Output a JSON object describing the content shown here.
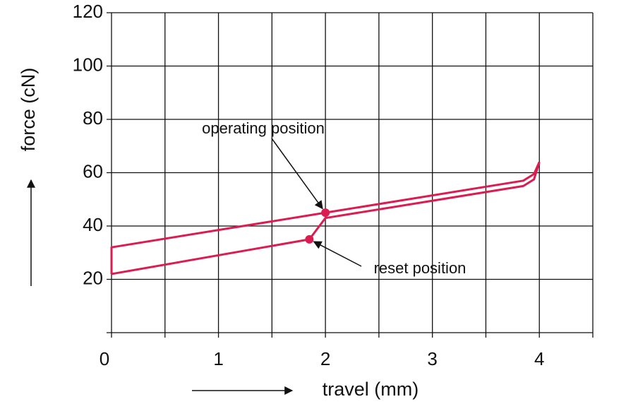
{
  "chart_data": {
    "type": "line",
    "xlabel": "travel (mm)",
    "ylabel": "force (cN)",
    "xlim": [
      0,
      4.5
    ],
    "xticks": [
      0,
      1,
      2,
      3,
      4
    ],
    "x_minor_grid": [
      0.5,
      1.5,
      2.5,
      3.5,
      4.5
    ],
    "ylim": [
      0,
      120
    ],
    "yticks": [
      20,
      40,
      60,
      80,
      100,
      120
    ],
    "grid": true,
    "color": "#dc1c50",
    "series": [
      {
        "x": [
          0,
          0,
          2,
          3.85,
          3.95,
          4.0
        ],
        "values": [
          22,
          32,
          45,
          57,
          59.5,
          64
        ]
      },
      {
        "x": [
          0,
          1.85,
          2.0,
          3.85,
          3.95,
          4.0
        ],
        "values": [
          22,
          35,
          43,
          55,
          57.5,
          64
        ]
      }
    ],
    "points": [
      {
        "label": "operating position",
        "x": 2,
        "y": 45
      },
      {
        "label": "reset position",
        "x": 1.85,
        "y": 35
      }
    ]
  }
}
